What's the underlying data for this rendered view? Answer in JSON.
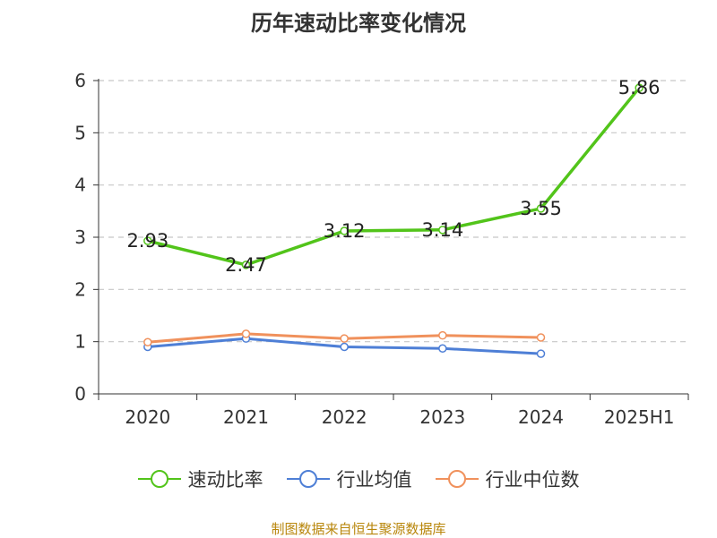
{
  "title": "历年速动比率变化情况",
  "source": "制图数据来自恒生聚源数据库",
  "chart_data": {
    "type": "line",
    "categories": [
      "2020",
      "2021",
      "2022",
      "2023",
      "2024",
      "2025H1"
    ],
    "ylim": [
      0,
      6
    ],
    "yticks": [
      0,
      1,
      2,
      3,
      4,
      5,
      6
    ],
    "grid": true,
    "legend_position": "bottom",
    "series": [
      {
        "name": "速动比率",
        "color": "#52c41a",
        "values": [
          2.93,
          2.47,
          3.12,
          3.14,
          3.55,
          5.86
        ],
        "labels": [
          "2.93",
          "2.47",
          "3.12",
          "3.14",
          "3.55",
          "5.86"
        ]
      },
      {
        "name": "行业均值",
        "color": "#4e7fd6",
        "values": [
          0.9,
          1.06,
          0.9,
          0.87,
          0.77,
          null
        ]
      },
      {
        "name": "行业中位数",
        "color": "#f0915c",
        "values": [
          0.99,
          1.15,
          1.06,
          1.12,
          1.08,
          null
        ]
      }
    ]
  }
}
